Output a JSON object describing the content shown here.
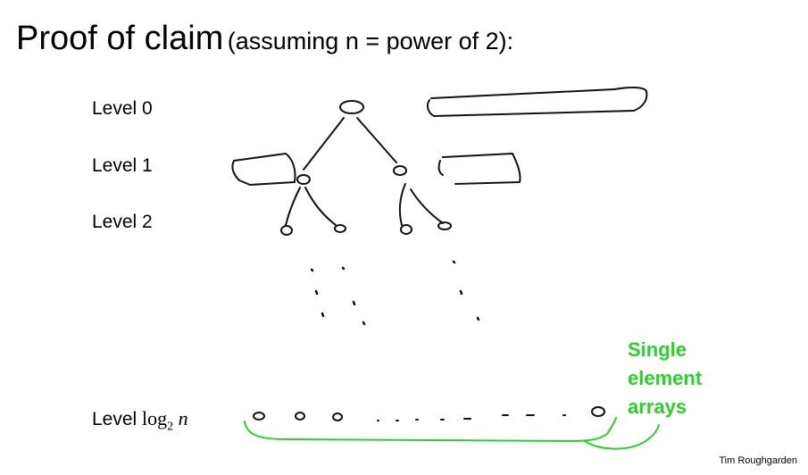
{
  "title": {
    "main": "Proof of claim",
    "sub": "(assuming n = power of 2):"
  },
  "levels": [
    {
      "label": "Level 0"
    },
    {
      "label": "Level 1"
    },
    {
      "label": "Level 2"
    }
  ],
  "last_level": {
    "word": "Level",
    "func": "log",
    "base": "2",
    "var": "n"
  },
  "annotation": {
    "lines": [
      "Single",
      "element",
      "arrays"
    ],
    "color": "#2bd12b"
  },
  "credit": "Tim Roughgarden"
}
